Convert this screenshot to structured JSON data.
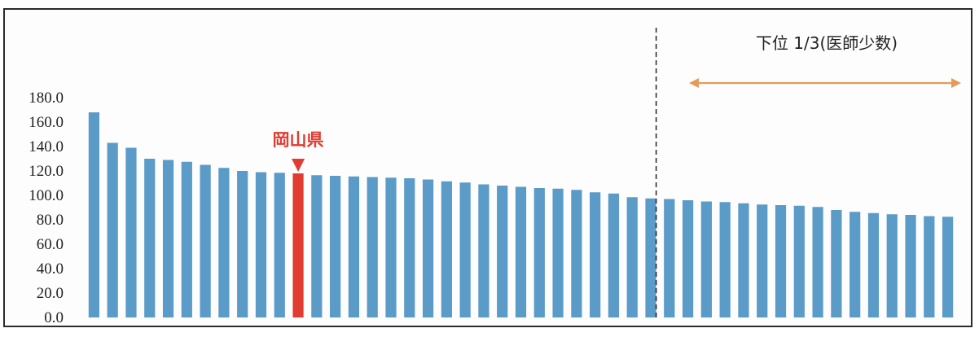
{
  "chart_data": {
    "type": "bar",
    "title": "",
    "xlabel": "",
    "ylabel": "",
    "ylim": [
      0,
      180
    ],
    "yticks": [
      "0.0",
      "20.0",
      "40.0",
      "60.0",
      "80.0",
      "100.0",
      "120.0",
      "140.0",
      "160.0",
      "180.0"
    ],
    "grid": false,
    "values": [
      168.0,
      143.0,
      139.0,
      130.0,
      129.0,
      127.5,
      125.0,
      122.5,
      120.0,
      119.0,
      118.5,
      118.0,
      116.5,
      116.0,
      115.5,
      115.0,
      114.5,
      114.0,
      113.0,
      111.5,
      110.5,
      109.0,
      108.0,
      107.0,
      106.0,
      105.5,
      104.5,
      102.5,
      101.5,
      98.5,
      97.5,
      97.0,
      96.0,
      95.0,
      94.5,
      93.5,
      92.5,
      92.0,
      91.5,
      90.5,
      88.0,
      86.5,
      85.5,
      84.5,
      84.0,
      83.0,
      82.5
    ],
    "highlight": {
      "index": 11,
      "label": "岡山県",
      "color": "#e03c31"
    },
    "bar_color": "#5b9bc8",
    "threshold": {
      "after_index": 30,
      "style": "dashed"
    },
    "annotation": {
      "text": "下位 1/3(医師少数)",
      "arrow_color": "#e59a55"
    }
  }
}
